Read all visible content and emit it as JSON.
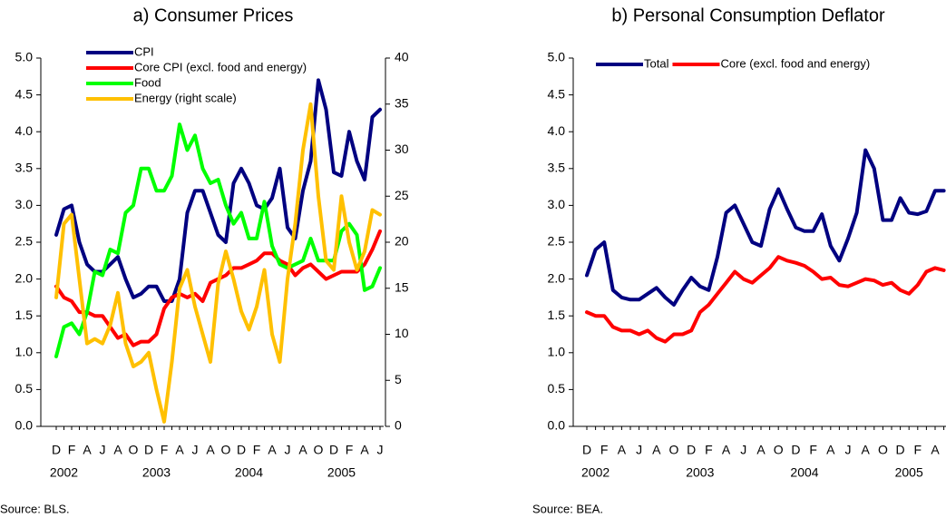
{
  "chart_data": [
    {
      "type": "line",
      "title": "a) Consumer Prices",
      "source": "Source: BLS.",
      "legend": "upper left",
      "categories": [
        "D",
        null,
        "F",
        null,
        "A",
        null,
        "J",
        null,
        "A",
        null,
        "O",
        null,
        "D",
        null,
        "F",
        null,
        "A",
        null,
        "J",
        null,
        "A",
        null,
        "O",
        null,
        "D",
        null,
        "F",
        null,
        "A",
        null,
        "J",
        null,
        "A",
        null,
        "O",
        null,
        "D",
        null,
        "F",
        null,
        "A",
        null,
        "J"
      ],
      "x_groups": [
        {
          "label": "2002",
          "start": 1
        },
        {
          "label": "2003",
          "start": 13
        },
        {
          "label": "2004",
          "start": 25
        },
        {
          "label": "2005",
          "start": 37
        }
      ],
      "ylim": [
        0,
        5
      ],
      "yticks": [
        {
          "value": 0,
          "label": "0.0"
        },
        {
          "value": 0.5,
          "label": "0.5"
        },
        {
          "value": 1,
          "label": "1.0"
        },
        {
          "value": 1.5,
          "label": "1.5"
        },
        {
          "value": 2,
          "label": "2.0"
        },
        {
          "value": 2.5,
          "label": "2.5"
        },
        {
          "value": 3,
          "label": "3.0"
        },
        {
          "value": 3.5,
          "label": "3.5"
        },
        {
          "value": 4,
          "label": "4.0"
        },
        {
          "value": 4.5,
          "label": "4.5"
        },
        {
          "value": 5,
          "label": "5.0"
        }
      ],
      "y2lim": [
        0,
        40
      ],
      "y2ticks": [
        0,
        5,
        10,
        15,
        20,
        25,
        30,
        35,
        40
      ],
      "series": [
        {
          "name": "CPI",
          "color": "#000080",
          "values": [
            2.6,
            2.95,
            3.0,
            2.5,
            2.2,
            2.1,
            2.1,
            2.2,
            2.3,
            2.0,
            1.75,
            1.8,
            1.9,
            1.9,
            1.7,
            1.7,
            2.0,
            2.9,
            3.2,
            3.2,
            2.9,
            2.6,
            2.5,
            3.3,
            3.5,
            3.3,
            3.0,
            2.95,
            3.1,
            3.5,
            2.7,
            2.55,
            3.2,
            3.6,
            4.7,
            4.3,
            3.45,
            3.4,
            4.0,
            3.6,
            3.35,
            4.2,
            4.3
          ]
        },
        {
          "name": "Core CPI (excl. food and energy)",
          "color": "#ff0000",
          "values": [
            1.9,
            1.75,
            1.7,
            1.55,
            1.55,
            1.5,
            1.5,
            1.35,
            1.2,
            1.25,
            1.1,
            1.15,
            1.15,
            1.25,
            1.6,
            1.75,
            1.8,
            1.75,
            1.8,
            1.7,
            1.95,
            2.0,
            2.05,
            2.15,
            2.15,
            2.2,
            2.25,
            2.35,
            2.35,
            2.25,
            2.2,
            2.05,
            2.15,
            2.2,
            2.1,
            2.0,
            2.05,
            2.1,
            2.1,
            2.1,
            2.2,
            2.4,
            2.65
          ]
        },
        {
          "name": "Food",
          "color": "#00ff00",
          "values": [
            0.95,
            1.35,
            1.4,
            1.25,
            1.55,
            2.1,
            2.05,
            2.4,
            2.35,
            2.9,
            3.0,
            3.5,
            3.5,
            3.2,
            3.2,
            3.4,
            4.1,
            3.75,
            3.95,
            3.5,
            3.3,
            3.35,
            3.0,
            2.75,
            2.9,
            2.55,
            2.55,
            3.05,
            2.45,
            2.2,
            2.15,
            2.2,
            2.25,
            2.55,
            2.25,
            2.25,
            2.25,
            2.65,
            2.75,
            2.6,
            1.85,
            1.9,
            2.15
          ]
        },
        {
          "name": "Energy (right scale)",
          "color": "#ffc000",
          "axis": "y2",
          "values": [
            14,
            22,
            23,
            16,
            9,
            9.5,
            9,
            11,
            14.5,
            9,
            6.5,
            7,
            8,
            4,
            0.5,
            7,
            15,
            17,
            13,
            10,
            7,
            15.5,
            19,
            16,
            12.5,
            10.5,
            13,
            17,
            10,
            7,
            16,
            22,
            30,
            35,
            25,
            18,
            17,
            25,
            20,
            17,
            19,
            23.5,
            23
          ]
        }
      ]
    },
    {
      "type": "line",
      "title": "b) Personal Consumption Deflator",
      "source": "Source: BEA.",
      "legend": "upper left",
      "categories": [
        "D",
        null,
        "F",
        null,
        "A",
        null,
        "J",
        null,
        "A",
        null,
        "O",
        null,
        "D",
        null,
        "F",
        null,
        "A",
        null,
        "J",
        null,
        "A",
        null,
        "O",
        null,
        "D",
        null,
        "F",
        null,
        "A",
        null,
        "J",
        null,
        "A",
        null,
        "O",
        null,
        "D",
        null,
        "F",
        null,
        "A",
        null
      ],
      "x_groups": [
        {
          "label": "2002",
          "start": 1
        },
        {
          "label": "2003",
          "start": 13
        },
        {
          "label": "2004",
          "start": 25
        },
        {
          "label": "2005",
          "start": 37
        }
      ],
      "ylim": [
        0,
        5
      ],
      "yticks": [
        {
          "value": 0,
          "label": "0.0"
        },
        {
          "value": 0.5,
          "label": "0.5"
        },
        {
          "value": 1,
          "label": "1.0"
        },
        {
          "value": 1.5,
          "label": "1.5"
        },
        {
          "value": 2,
          "label": "2.0"
        },
        {
          "value": 2.5,
          "label": "2.5"
        },
        {
          "value": 3,
          "label": "3.0"
        },
        {
          "value": 3.5,
          "label": "3.5"
        },
        {
          "value": 4,
          "label": "4.0"
        },
        {
          "value": 4.5,
          "label": "4.5"
        },
        {
          "value": 5,
          "label": "5.0"
        }
      ],
      "series": [
        {
          "name": "Total",
          "color": "#000080",
          "values": [
            2.05,
            2.4,
            2.5,
            1.85,
            1.75,
            1.72,
            1.72,
            1.8,
            1.88,
            1.75,
            1.65,
            1.85,
            2.02,
            1.9,
            1.85,
            2.3,
            2.9,
            3.0,
            2.75,
            2.5,
            2.45,
            2.95,
            3.22,
            2.95,
            2.7,
            2.65,
            2.65,
            2.88,
            2.45,
            2.25,
            2.55,
            2.9,
            3.75,
            3.5,
            2.8,
            2.8,
            3.1,
            2.9,
            2.88,
            2.92,
            3.2,
            3.2
          ]
        },
        {
          "name": "Core (excl. food and energy)",
          "color": "#ff0000",
          "values": [
            1.55,
            1.5,
            1.5,
            1.35,
            1.3,
            1.3,
            1.25,
            1.3,
            1.2,
            1.15,
            1.25,
            1.25,
            1.3,
            1.55,
            1.65,
            1.8,
            1.95,
            2.1,
            2.0,
            1.95,
            2.05,
            2.15,
            2.3,
            2.25,
            2.22,
            2.18,
            2.1,
            2.0,
            2.02,
            1.92,
            1.9,
            1.95,
            2.0,
            1.98,
            1.92,
            1.95,
            1.85,
            1.8,
            1.92,
            2.1,
            2.15,
            2.12
          ]
        }
      ]
    }
  ]
}
